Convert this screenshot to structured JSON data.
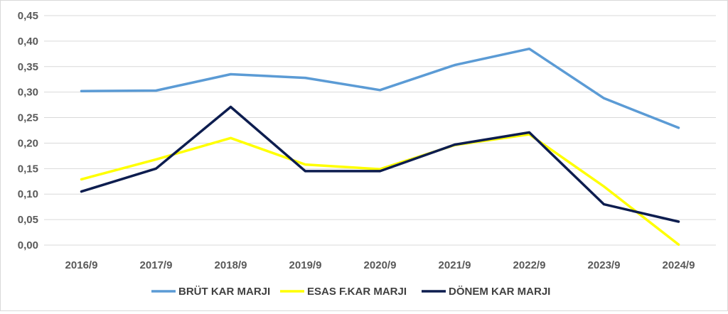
{
  "chart_data": {
    "type": "line",
    "title": "",
    "xlabel": "",
    "ylabel": "",
    "categories": [
      "2016/9",
      "2017/9",
      "2018/9",
      "2019/9",
      "2020/9",
      "2021/9",
      "2022/9",
      "2023/9",
      "2024/9"
    ],
    "y_ticks": [
      "0,00",
      "0,05",
      "0,10",
      "0,15",
      "0,20",
      "0,25",
      "0,30",
      "0,35",
      "0,40",
      "0,45"
    ],
    "ylim": [
      0,
      0.45
    ],
    "grid": true,
    "legend_position": "bottom",
    "series": [
      {
        "name": "BRÜT KAR MARJI",
        "color": "#5b9bd5",
        "values": [
          0.302,
          0.303,
          0.335,
          0.328,
          0.304,
          0.353,
          0.385,
          0.288,
          0.23
        ]
      },
      {
        "name": "ESAS F.KAR MARJI",
        "color": "#ffff00",
        "values": [
          0.129,
          0.168,
          0.21,
          0.158,
          0.149,
          0.196,
          0.217,
          0.115,
          0.001
        ]
      },
      {
        "name": "DÖNEM KAR MARJI",
        "color": "#0d1d4f",
        "values": [
          0.105,
          0.15,
          0.271,
          0.145,
          0.145,
          0.197,
          0.221,
          0.08,
          0.046
        ]
      }
    ]
  }
}
